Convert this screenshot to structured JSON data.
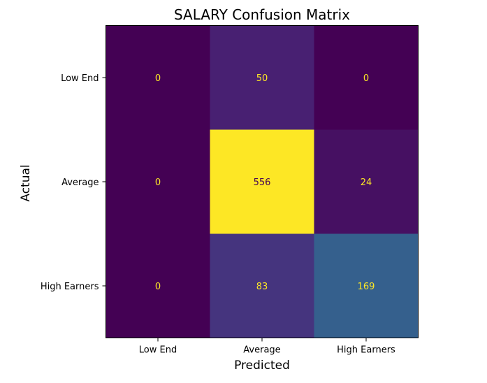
{
  "chart_data": {
    "type": "heatmap",
    "title": "SALARY Confusion Matrix",
    "xlabel": "Predicted",
    "ylabel": "Actual",
    "x_categories": [
      "Low End",
      "Average",
      "High Earners"
    ],
    "y_categories": [
      "Low End",
      "Average",
      "High Earners"
    ],
    "values": [
      [
        0,
        50,
        0
      ],
      [
        0,
        556,
        24
      ],
      [
        0,
        83,
        169
      ]
    ],
    "colormap": "viridis",
    "vmin": 0,
    "vmax": 556,
    "grid": false,
    "legend": "none",
    "colors": {
      "low_text": "#fde725",
      "high_text": "#440154"
    }
  }
}
